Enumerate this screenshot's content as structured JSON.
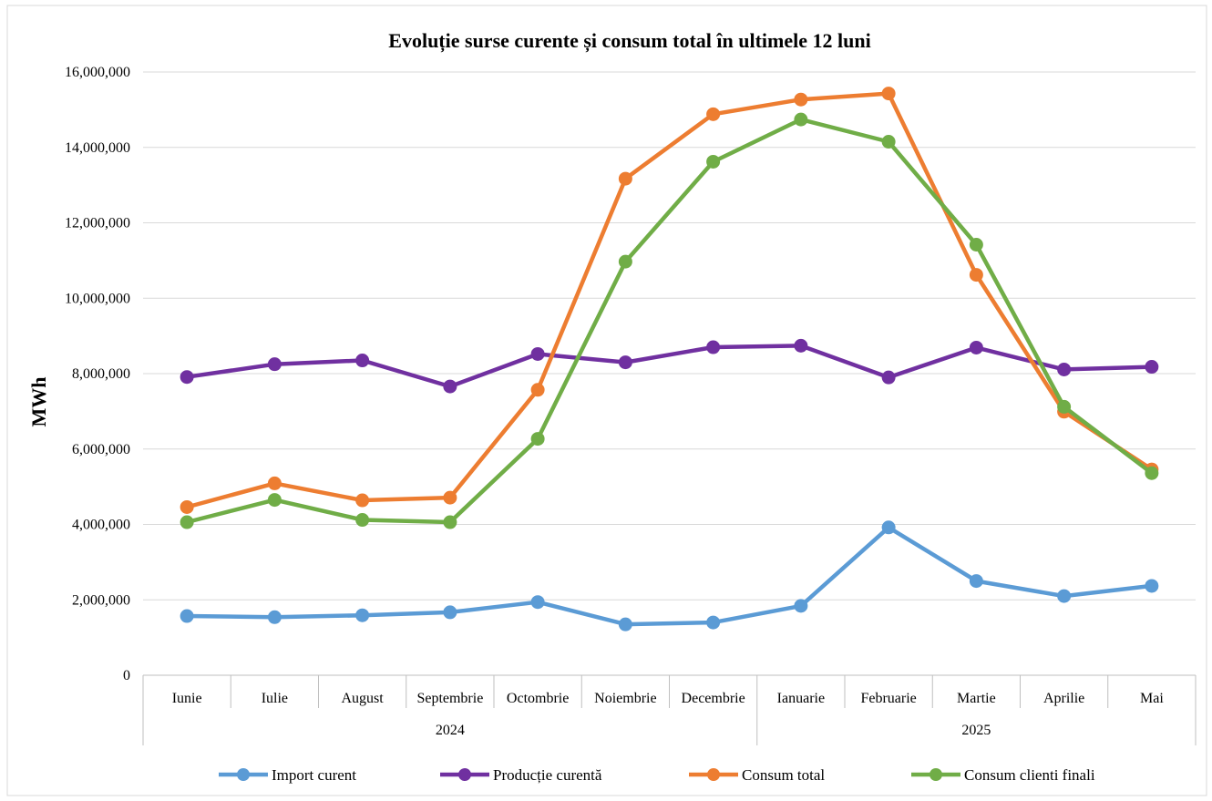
{
  "chart_data": {
    "type": "line",
    "title": "Evoluție surse curente și consum total în ultimele 12 luni",
    "xlabel": "",
    "ylabel": "MWh",
    "categories": [
      "Iunie",
      "Iulie",
      "August",
      "Septembrie",
      "Octombrie",
      "Noiembrie",
      "Decembrie",
      "Ianuarie",
      "Februarie",
      "Martie",
      "Aprilie",
      "Mai"
    ],
    "year_groups": [
      {
        "label": "2024",
        "span": 7
      },
      {
        "label": "2025",
        "span": 5
      }
    ],
    "ylim": [
      0,
      16000000
    ],
    "yticks": [
      0,
      2000000,
      4000000,
      6000000,
      8000000,
      10000000,
      12000000,
      14000000,
      16000000
    ],
    "ytick_labels": [
      "0",
      "2,000,000",
      "4,000,000",
      "6,000,000",
      "8,000,000",
      "10,000,000",
      "12,000,000",
      "14,000,000",
      "16,000,000"
    ],
    "grid": true,
    "legend_position": "bottom",
    "series": [
      {
        "name": "Import curent",
        "color": "#5B9BD5",
        "values": [
          1570000,
          1540000,
          1590000,
          1670000,
          1940000,
          1350000,
          1400000,
          1840000,
          3920000,
          2500000,
          2100000,
          2370000
        ]
      },
      {
        "name": "Producție curentă",
        "color": "#7030A0",
        "values": [
          7910000,
          8250000,
          8350000,
          7660000,
          8520000,
          8300000,
          8700000,
          8740000,
          7900000,
          8690000,
          8110000,
          8180000
        ]
      },
      {
        "name": "Consum total",
        "color": "#ED7D31",
        "values": [
          4460000,
          5090000,
          4640000,
          4710000,
          7570000,
          13170000,
          14880000,
          15270000,
          15430000,
          10620000,
          6990000,
          5460000
        ]
      },
      {
        "name": "Consum clienti finali",
        "color": "#70AD47",
        "values": [
          4060000,
          4650000,
          4120000,
          4060000,
          6270000,
          10970000,
          13620000,
          14740000,
          14150000,
          11420000,
          7120000,
          5360000
        ]
      }
    ]
  }
}
